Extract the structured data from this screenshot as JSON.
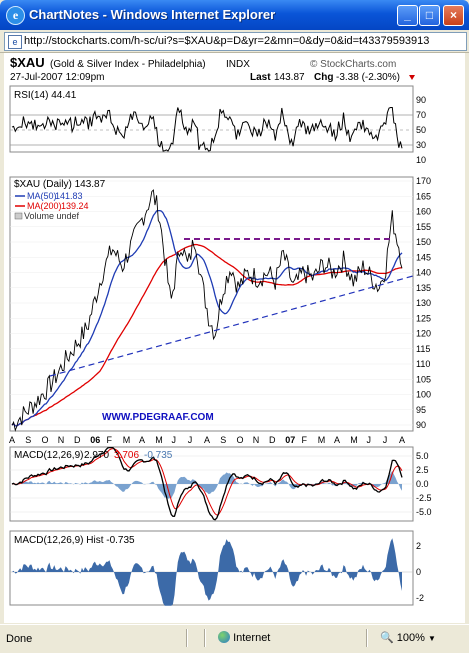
{
  "window": {
    "title": "ChartNotes - Windows Internet Explorer",
    "ie_glyph": "e"
  },
  "address": {
    "url": "http://stockcharts.com/h-sc/ui?s=$XAU&p=D&yr=2&mn=0&dy=0&id=t43379593913"
  },
  "chart_header": {
    "symbol": "$XAU",
    "name": "(Gold & Silver Index - Philadelphia)",
    "exchange": "INDX",
    "brand": "© StockCharts.com",
    "date": "27-Jul-2007 12:09pm",
    "last_label": "Last",
    "last_value": "143.87",
    "chg_label": "Chg",
    "chg_value": "-3.38 (-2.30%)"
  },
  "rsi": {
    "label": "RSI(14) 44.41",
    "ticks": [
      "90",
      "70",
      "50",
      "30",
      "10"
    ],
    "values": [
      90,
      70,
      50,
      30,
      10
    ]
  },
  "price": {
    "legend_main": "$XAU (Daily) 143.87",
    "legend_ma50": "MA(50)",
    "legend_ma50_val": "141.83",
    "legend_ma200": "MA(200)",
    "legend_ma200_val": "139.24",
    "legend_volume": "Volume undef",
    "watermark": "WWW.PDEGRAAF.COM",
    "ticks": [
      "170",
      "165",
      "160",
      "155",
      "150",
      "145",
      "140",
      "135",
      "130",
      "125",
      "120",
      "115",
      "110",
      "105",
      "100",
      "95",
      "90"
    ],
    "tick_values": [
      170,
      165,
      160,
      155,
      150,
      145,
      140,
      135,
      130,
      125,
      120,
      115,
      110,
      105,
      100,
      95,
      90
    ],
    "resistance_level": 151,
    "colors": {
      "price": "#000000",
      "ma50": "#1f3cb4",
      "ma200": "#e00000",
      "resistance": "#7a1a8c",
      "trendline": "#2233bb",
      "watermark": "#1010c0"
    }
  },
  "x_axis": {
    "labels": [
      "A",
      "S",
      "O",
      "N",
      "D",
      "06",
      "F",
      "M",
      "A",
      "M",
      "J",
      "J",
      "A",
      "S",
      "O",
      "N",
      "D",
      "07",
      "F",
      "M",
      "A",
      "M",
      "J",
      "J",
      "A"
    ]
  },
  "macd": {
    "label": "MACD(12,26,9)",
    "v1": "2.970",
    "v2": "3.706",
    "v3": "-0.735",
    "ticks": [
      "5.0",
      "2.5",
      "0.0",
      "-2.5",
      "-5.0"
    ],
    "tick_values": [
      5,
      2.5,
      0,
      -2.5,
      -5
    ]
  },
  "hist": {
    "label": "MACD(12,26,9) Hist -0.735",
    "ticks": [
      "2",
      "0",
      "-2"
    ],
    "tick_values": [
      2,
      0,
      -2
    ]
  },
  "status": {
    "done": "Done",
    "zone": "Internet",
    "zoom": "100%"
  }
}
